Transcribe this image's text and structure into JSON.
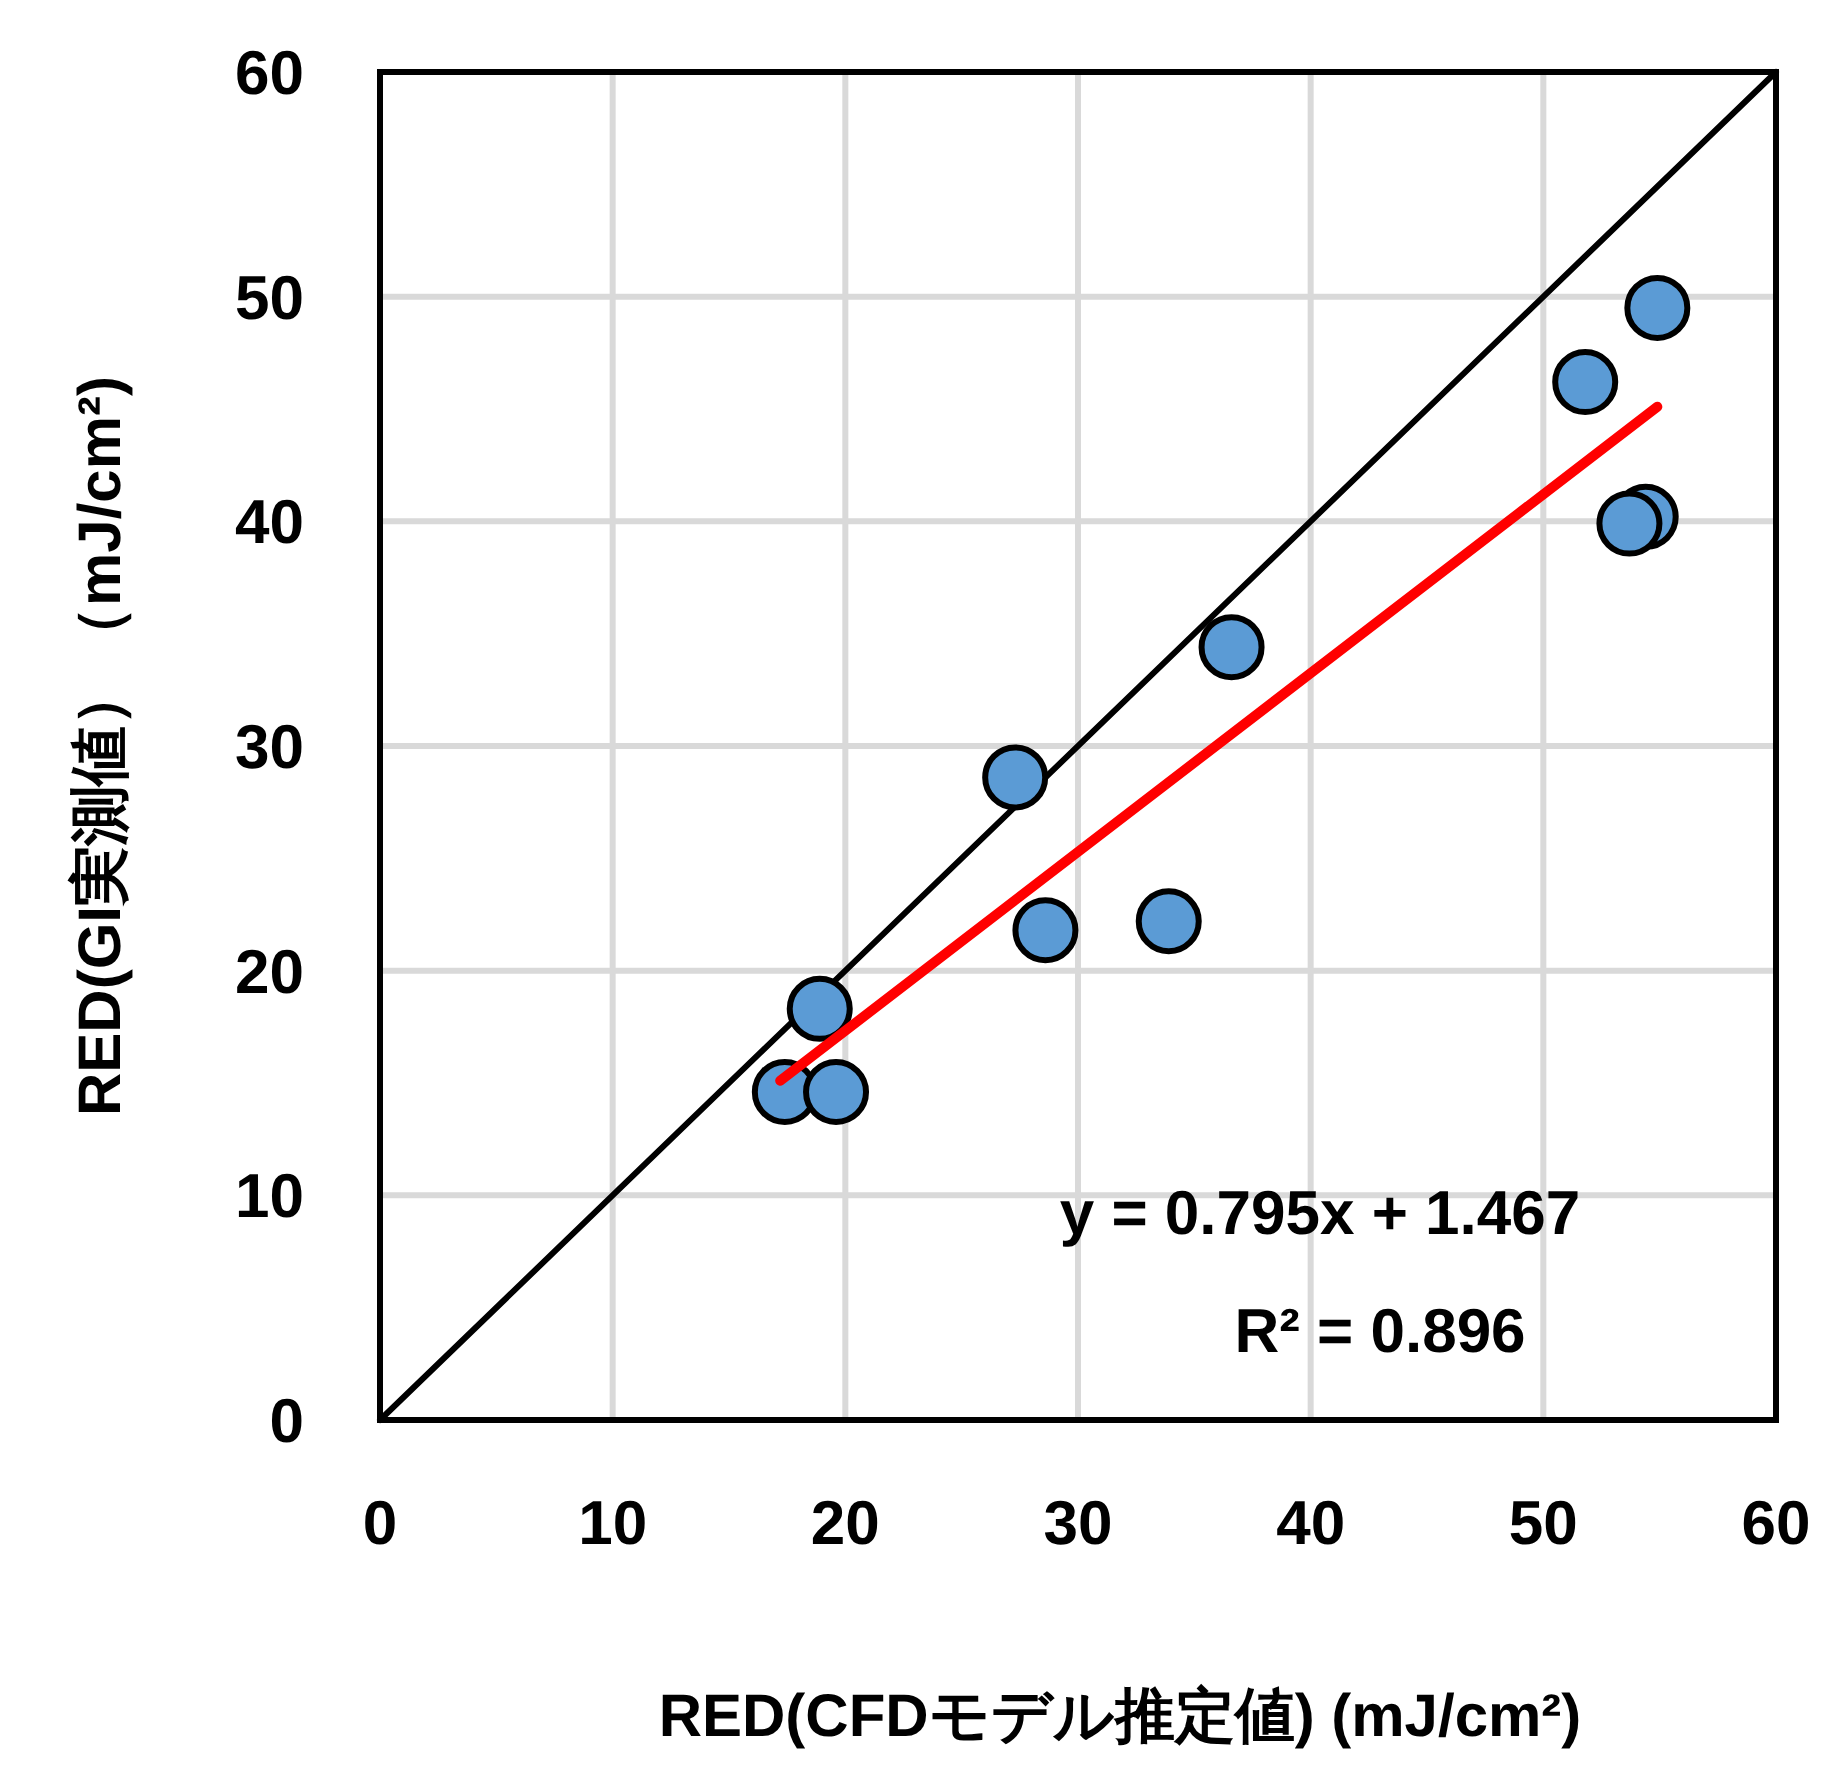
{
  "chart_data": {
    "type": "scatter",
    "xlabel": "RED(CFDモデル推定値) (mJ/cm²)",
    "ylabel": "RED(GI実測値）（mJ/cm²)",
    "xlim": [
      0,
      60
    ],
    "ylim": [
      0,
      60
    ],
    "xticks": [
      0,
      10,
      20,
      30,
      40,
      50,
      60
    ],
    "yticks": [
      0,
      10,
      20,
      30,
      40,
      50,
      60
    ],
    "grid": true,
    "series": [
      {
        "type": "line",
        "color": "#000000",
        "x": [
          0,
          60
        ],
        "values": [
          0,
          60
        ]
      },
      {
        "type": "scatter",
        "marker": "circle",
        "color": "#5b9bd5",
        "x": [
          17.4,
          18.9,
          19.6,
          27.3,
          28.6,
          33.9,
          36.6,
          51.8,
          54.9,
          54.4,
          53.7
        ],
        "values": [
          14.6,
          18.3,
          14.6,
          28.6,
          21.8,
          22.2,
          34.4,
          46.2,
          49.5,
          40.2,
          39.9
        ]
      },
      {
        "type": "line",
        "color": "#ff0000",
        "x": [
          17.2,
          54.9
        ],
        "values": [
          15.1,
          45.1
        ]
      }
    ],
    "annotations": [
      "y = 0.795x + 1.467",
      "R² = 0.896"
    ]
  }
}
